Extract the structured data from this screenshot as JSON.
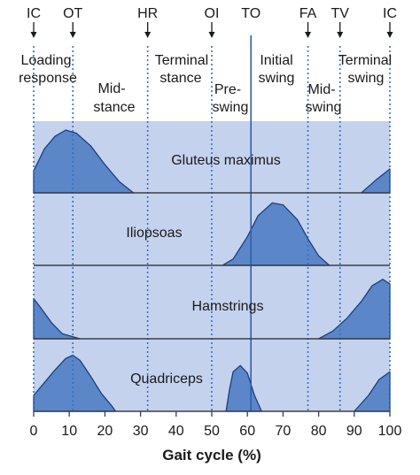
{
  "events": [
    {
      "label": "IC",
      "pct": 0
    },
    {
      "label": "OT",
      "pct": 11
    },
    {
      "label": "HR",
      "pct": 32
    },
    {
      "label": "OI",
      "pct": 50
    },
    {
      "label": "TO",
      "pct": 61
    },
    {
      "label": "FA",
      "pct": 77
    },
    {
      "label": "TV",
      "pct": 86
    },
    {
      "label": "IC",
      "pct": 100
    }
  ],
  "phases": {
    "loading_line1": "Loading",
    "loading_line2": "response",
    "midstance_line1": "Mid-",
    "midstance_line2": "stance",
    "terminal_stance_line1": "Terminal",
    "terminal_stance_line2": "stance",
    "preswing_line1": "Pre-",
    "preswing_line2": "swing",
    "initial_swing_line1": "Initial",
    "initial_swing_line2": "swing",
    "midswing_line1": "Mid-",
    "midswing_line2": "swing",
    "terminal_swing_line1": "Terminal",
    "terminal_swing_line2": "swing"
  },
  "muscles": [
    {
      "name": "Gluteus maximus",
      "activity": [
        [
          0,
          0.35
        ],
        [
          3,
          0.7
        ],
        [
          6,
          0.9
        ],
        [
          9,
          1.0
        ],
        [
          12,
          0.95
        ],
        [
          16,
          0.75
        ],
        [
          20,
          0.45
        ],
        [
          24,
          0.18
        ],
        [
          28,
          0.0
        ],
        [
          92,
          0.0
        ],
        [
          96,
          0.2
        ],
        [
          100,
          0.38
        ]
      ]
    },
    {
      "name": "Iliopsoas",
      "activity": [
        [
          53,
          0.0
        ],
        [
          56,
          0.1
        ],
        [
          60,
          0.45
        ],
        [
          63,
          0.78
        ],
        [
          67,
          0.98
        ],
        [
          70,
          0.95
        ],
        [
          74,
          0.72
        ],
        [
          77,
          0.42
        ],
        [
          80,
          0.15
        ],
        [
          83,
          0.0
        ]
      ]
    },
    {
      "name": "Hamstrings",
      "activity": [
        [
          0,
          0.62
        ],
        [
          2,
          0.48
        ],
        [
          5,
          0.25
        ],
        [
          8,
          0.08
        ],
        [
          13,
          0.0
        ],
        [
          80,
          0.0
        ],
        [
          84,
          0.12
        ],
        [
          88,
          0.32
        ],
        [
          92,
          0.58
        ],
        [
          95,
          0.82
        ],
        [
          98,
          0.92
        ],
        [
          100,
          0.85
        ]
      ]
    },
    {
      "name": "Quadriceps",
      "activity": [
        [
          0,
          0.25
        ],
        [
          3,
          0.45
        ],
        [
          6,
          0.65
        ],
        [
          9,
          0.83
        ],
        [
          11,
          0.88
        ],
        [
          13,
          0.8
        ],
        [
          16,
          0.55
        ],
        [
          19,
          0.28
        ],
        [
          22,
          0.08
        ],
        [
          23,
          0.0
        ],
        [
          54,
          0.0
        ],
        [
          55,
          0.35
        ],
        [
          56,
          0.62
        ],
        [
          58,
          0.72
        ],
        [
          60,
          0.6
        ],
        [
          62,
          0.25
        ],
        [
          64,
          0.0
        ],
        [
          90,
          0.0
        ],
        [
          94,
          0.25
        ],
        [
          97,
          0.5
        ],
        [
          100,
          0.62
        ]
      ]
    }
  ],
  "axis": {
    "ticks": [
      0,
      10,
      20,
      30,
      40,
      50,
      60,
      70,
      80,
      90,
      100
    ],
    "xlabel": "Gait cycle (%)"
  },
  "colors": {
    "panel_bg": "#c5d2ee",
    "activity_fill": "#5b86c8",
    "activity_stroke": "#1c3f80",
    "divider": "#3a3f48",
    "dotted": "#2e73c4",
    "toe_off_line": "#2e5fa8",
    "text": "#1a1a1a"
  }
}
